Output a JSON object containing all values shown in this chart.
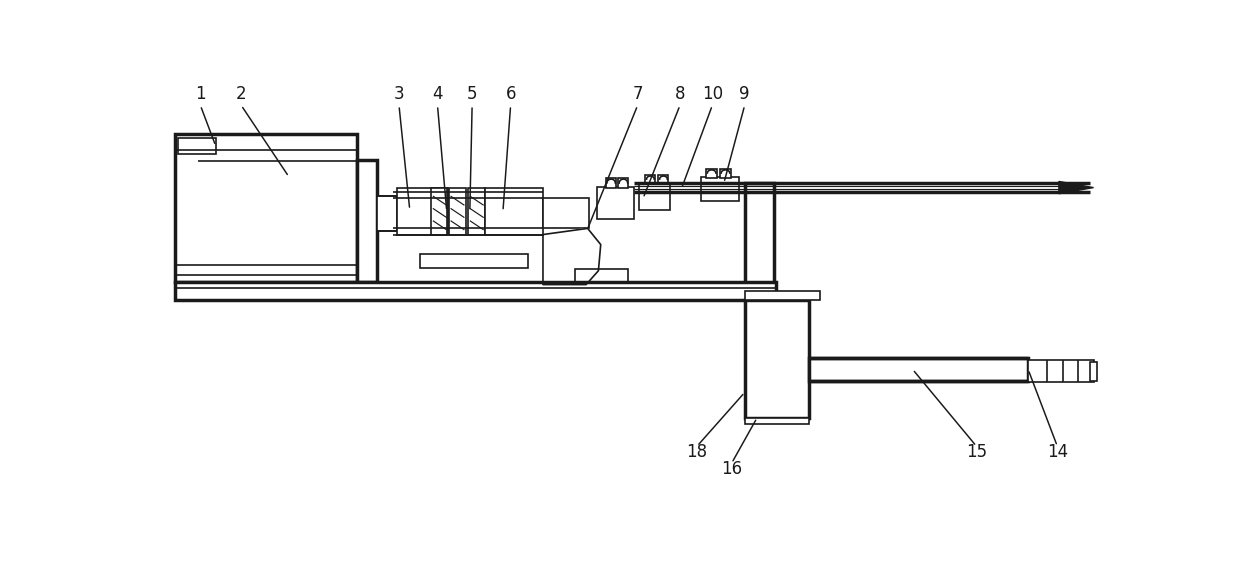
{
  "bg_color": "#ffffff",
  "lc": "#1a1a1a",
  "lw_thin": 1.2,
  "lw_thick": 2.5,
  "label_fontsize": 12,
  "labels": [
    [
      "1",
      55,
      32
    ],
    [
      "2",
      108,
      32
    ],
    [
      "3",
      313,
      32
    ],
    [
      "4",
      363,
      32
    ],
    [
      "5",
      408,
      32
    ],
    [
      "6",
      458,
      32
    ],
    [
      "7",
      623,
      32
    ],
    [
      "8",
      678,
      32
    ],
    [
      "10",
      720,
      32
    ],
    [
      "9",
      762,
      32
    ],
    [
      "14",
      1168,
      498
    ],
    [
      "15",
      1063,
      498
    ],
    [
      "16",
      745,
      520
    ],
    [
      "18",
      700,
      498
    ]
  ],
  "leader_lines": [
    [
      "1",
      55,
      47,
      75,
      100
    ],
    [
      "2",
      108,
      47,
      170,
      140
    ],
    [
      "3",
      313,
      47,
      327,
      183
    ],
    [
      "4",
      363,
      47,
      375,
      185
    ],
    [
      "5",
      408,
      47,
      405,
      185
    ],
    [
      "6",
      458,
      47,
      448,
      185
    ],
    [
      "7",
      623,
      47,
      557,
      210
    ],
    [
      "8",
      678,
      47,
      630,
      168
    ],
    [
      "10",
      720,
      47,
      680,
      155
    ],
    [
      "9",
      762,
      47,
      735,
      148
    ],
    [
      "14",
      1168,
      490,
      1130,
      390
    ],
    [
      "15",
      1063,
      490,
      980,
      390
    ],
    [
      "16",
      745,
      512,
      778,
      453
    ],
    [
      "18",
      700,
      490,
      762,
      420
    ]
  ]
}
